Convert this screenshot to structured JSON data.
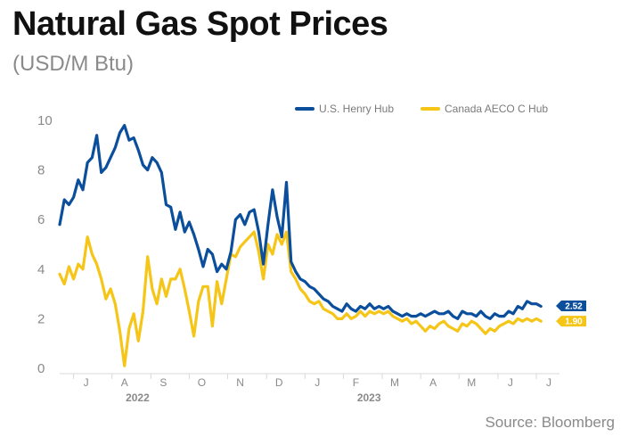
{
  "header": {
    "title": "Natural Gas Spot Prices",
    "subtitle": "(USD/M Btu)"
  },
  "footer": {
    "source": "Source: Bloomberg"
  },
  "chart_data": {
    "type": "line",
    "title": "Natural Gas Spot Prices",
    "subtitle": "(USD/M Btu)",
    "ylim": [
      0,
      10
    ],
    "yticks": [
      0,
      2,
      4,
      6,
      8,
      10
    ],
    "x_range": [
      2022.47,
      2023.55
    ],
    "x_month_ticks": [
      {
        "label": "J",
        "x": 2022.5
      },
      {
        "label": "A",
        "x": 2022.583
      },
      {
        "label": "S",
        "x": 2022.667
      },
      {
        "label": "O",
        "x": 2022.75
      },
      {
        "label": "N",
        "x": 2022.833
      },
      {
        "label": "D",
        "x": 2022.917
      },
      {
        "label": "J",
        "x": 2023.0
      },
      {
        "label": "F",
        "x": 2023.083
      },
      {
        "label": "M",
        "x": 2023.167
      },
      {
        "label": "A",
        "x": 2023.25
      },
      {
        "label": "M",
        "x": 2023.333
      },
      {
        "label": "J",
        "x": 2023.417
      },
      {
        "label": "J",
        "x": 2023.5
      }
    ],
    "year_labels": [
      {
        "label": "2022",
        "x": 2022.75
      },
      {
        "label": "2023",
        "x": 2023.25
      }
    ],
    "grid": false,
    "legend": "top-right",
    "series": [
      {
        "name": "U.S. Henry Hub",
        "color": "#0b4f9c",
        "end_label": "2.52",
        "points": [
          [
            2022.47,
            5.8
          ],
          [
            2022.48,
            6.8
          ],
          [
            2022.49,
            6.6
          ],
          [
            2022.5,
            6.9
          ],
          [
            2022.51,
            7.6
          ],
          [
            2022.52,
            7.2
          ],
          [
            2022.53,
            8.3
          ],
          [
            2022.54,
            8.5
          ],
          [
            2022.55,
            9.4
          ],
          [
            2022.56,
            7.9
          ],
          [
            2022.57,
            8.1
          ],
          [
            2022.58,
            8.5
          ],
          [
            2022.59,
            8.9
          ],
          [
            2022.6,
            9.5
          ],
          [
            2022.61,
            9.8
          ],
          [
            2022.62,
            9.2
          ],
          [
            2022.63,
            9.3
          ],
          [
            2022.64,
            8.8
          ],
          [
            2022.65,
            8.2
          ],
          [
            2022.66,
            8.0
          ],
          [
            2022.67,
            8.5
          ],
          [
            2022.68,
            8.3
          ],
          [
            2022.69,
            7.9
          ],
          [
            2022.7,
            6.6
          ],
          [
            2022.71,
            6.5
          ],
          [
            2022.72,
            5.6
          ],
          [
            2022.73,
            6.3
          ],
          [
            2022.74,
            5.5
          ],
          [
            2022.75,
            5.9
          ],
          [
            2022.76,
            5.4
          ],
          [
            2022.77,
            4.8
          ],
          [
            2022.78,
            4.1
          ],
          [
            2022.79,
            4.8
          ],
          [
            2022.8,
            4.6
          ],
          [
            2022.81,
            3.9
          ],
          [
            2022.82,
            4.2
          ],
          [
            2022.83,
            4.0
          ],
          [
            2022.84,
            4.7
          ],
          [
            2022.85,
            6.0
          ],
          [
            2022.86,
            6.2
          ],
          [
            2022.87,
            5.8
          ],
          [
            2022.88,
            6.3
          ],
          [
            2022.89,
            6.4
          ],
          [
            2022.9,
            5.5
          ],
          [
            2022.91,
            4.2
          ],
          [
            2022.92,
            5.8
          ],
          [
            2022.93,
            7.2
          ],
          [
            2022.94,
            6.1
          ],
          [
            2022.95,
            5.3
          ],
          [
            2022.96,
            7.5
          ],
          [
            2022.97,
            4.3
          ],
          [
            2022.98,
            3.9
          ],
          [
            2022.99,
            3.6
          ],
          [
            2023.0,
            3.5
          ],
          [
            2023.01,
            3.3
          ],
          [
            2023.02,
            3.2
          ],
          [
            2023.03,
            3.0
          ],
          [
            2023.04,
            2.8
          ],
          [
            2023.05,
            2.7
          ],
          [
            2023.06,
            2.5
          ],
          [
            2023.07,
            2.4
          ],
          [
            2023.08,
            2.3
          ],
          [
            2023.09,
            2.6
          ],
          [
            2023.1,
            2.4
          ],
          [
            2023.11,
            2.3
          ],
          [
            2023.12,
            2.5
          ],
          [
            2023.13,
            2.4
          ],
          [
            2023.14,
            2.6
          ],
          [
            2023.15,
            2.4
          ],
          [
            2023.16,
            2.5
          ],
          [
            2023.17,
            2.4
          ],
          [
            2023.18,
            2.5
          ],
          [
            2023.19,
            2.3
          ],
          [
            2023.2,
            2.2
          ],
          [
            2023.21,
            2.1
          ],
          [
            2023.22,
            2.2
          ],
          [
            2023.23,
            2.1
          ],
          [
            2023.24,
            2.1
          ],
          [
            2023.25,
            2.2
          ],
          [
            2023.26,
            2.1
          ],
          [
            2023.27,
            2.2
          ],
          [
            2023.28,
            2.3
          ],
          [
            2023.29,
            2.2
          ],
          [
            2023.3,
            2.2
          ],
          [
            2023.31,
            2.3
          ],
          [
            2023.32,
            2.1
          ],
          [
            2023.33,
            2.0
          ],
          [
            2023.34,
            2.3
          ],
          [
            2023.35,
            2.2
          ],
          [
            2023.36,
            2.2
          ],
          [
            2023.37,
            2.1
          ],
          [
            2023.38,
            2.3
          ],
          [
            2023.39,
            2.1
          ],
          [
            2023.4,
            2.0
          ],
          [
            2023.41,
            2.2
          ],
          [
            2023.42,
            2.1
          ],
          [
            2023.43,
            2.1
          ],
          [
            2023.44,
            2.3
          ],
          [
            2023.45,
            2.2
          ],
          [
            2023.46,
            2.5
          ],
          [
            2023.47,
            2.4
          ],
          [
            2023.48,
            2.7
          ],
          [
            2023.49,
            2.6
          ],
          [
            2023.5,
            2.6
          ],
          [
            2023.51,
            2.5
          ]
        ]
      },
      {
        "name": "Canada AECO C Hub",
        "color": "#f5c518",
        "end_label": "1.90",
        "points": [
          [
            2022.47,
            3.8
          ],
          [
            2022.48,
            3.4
          ],
          [
            2022.49,
            4.1
          ],
          [
            2022.5,
            3.6
          ],
          [
            2022.51,
            4.2
          ],
          [
            2022.52,
            4.0
          ],
          [
            2022.53,
            5.3
          ],
          [
            2022.54,
            4.6
          ],
          [
            2022.55,
            4.2
          ],
          [
            2022.56,
            3.6
          ],
          [
            2022.57,
            2.8
          ],
          [
            2022.58,
            3.2
          ],
          [
            2022.59,
            2.6
          ],
          [
            2022.6,
            1.5
          ],
          [
            2022.61,
            0.1
          ],
          [
            2022.62,
            1.6
          ],
          [
            2022.63,
            2.2
          ],
          [
            2022.64,
            1.1
          ],
          [
            2022.65,
            2.3
          ],
          [
            2022.66,
            4.5
          ],
          [
            2022.67,
            3.2
          ],
          [
            2022.68,
            2.6
          ],
          [
            2022.69,
            3.6
          ],
          [
            2022.7,
            2.9
          ],
          [
            2022.71,
            3.6
          ],
          [
            2022.72,
            3.6
          ],
          [
            2022.73,
            4.0
          ],
          [
            2022.74,
            3.2
          ],
          [
            2022.75,
            2.3
          ],
          [
            2022.76,
            1.3
          ],
          [
            2022.77,
            2.7
          ],
          [
            2022.78,
            3.3
          ],
          [
            2022.79,
            3.3
          ],
          [
            2022.8,
            1.7
          ],
          [
            2022.81,
            3.5
          ],
          [
            2022.82,
            2.6
          ],
          [
            2022.83,
            3.6
          ],
          [
            2022.84,
            4.6
          ],
          [
            2022.85,
            4.5
          ],
          [
            2022.86,
            4.9
          ],
          [
            2022.87,
            5.1
          ],
          [
            2022.88,
            5.3
          ],
          [
            2022.89,
            5.5
          ],
          [
            2022.9,
            4.7
          ],
          [
            2022.91,
            3.6
          ],
          [
            2022.92,
            5.0
          ],
          [
            2022.93,
            4.6
          ],
          [
            2022.94,
            5.4
          ],
          [
            2022.95,
            5.0
          ],
          [
            2022.96,
            5.5
          ],
          [
            2022.97,
            3.9
          ],
          [
            2022.98,
            3.6
          ],
          [
            2022.99,
            3.2
          ],
          [
            2023.0,
            3.0
          ],
          [
            2023.01,
            2.7
          ],
          [
            2023.02,
            2.6
          ],
          [
            2023.03,
            2.7
          ],
          [
            2023.04,
            2.4
          ],
          [
            2023.05,
            2.3
          ],
          [
            2023.06,
            2.2
          ],
          [
            2023.07,
            2.0
          ],
          [
            2023.08,
            2.0
          ],
          [
            2023.09,
            2.2
          ],
          [
            2023.1,
            2.0
          ],
          [
            2023.11,
            2.1
          ],
          [
            2023.12,
            2.3
          ],
          [
            2023.13,
            2.1
          ],
          [
            2023.14,
            2.3
          ],
          [
            2023.15,
            2.2
          ],
          [
            2023.16,
            2.3
          ],
          [
            2023.17,
            2.2
          ],
          [
            2023.18,
            2.3
          ],
          [
            2023.19,
            2.1
          ],
          [
            2023.2,
            2.0
          ],
          [
            2023.21,
            1.9
          ],
          [
            2023.22,
            2.0
          ],
          [
            2023.23,
            1.8
          ],
          [
            2023.24,
            1.9
          ],
          [
            2023.25,
            1.7
          ],
          [
            2023.26,
            1.5
          ],
          [
            2023.27,
            1.7
          ],
          [
            2023.28,
            1.6
          ],
          [
            2023.29,
            1.8
          ],
          [
            2023.3,
            1.9
          ],
          [
            2023.31,
            1.7
          ],
          [
            2023.32,
            1.6
          ],
          [
            2023.33,
            1.5
          ],
          [
            2023.34,
            1.8
          ],
          [
            2023.35,
            1.7
          ],
          [
            2023.36,
            1.9
          ],
          [
            2023.37,
            1.8
          ],
          [
            2023.38,
            1.6
          ],
          [
            2023.39,
            1.4
          ],
          [
            2023.4,
            1.6
          ],
          [
            2023.41,
            1.5
          ],
          [
            2023.42,
            1.7
          ],
          [
            2023.43,
            1.8
          ],
          [
            2023.44,
            1.9
          ],
          [
            2023.45,
            1.8
          ],
          [
            2023.46,
            2.0
          ],
          [
            2023.47,
            1.9
          ],
          [
            2023.48,
            2.0
          ],
          [
            2023.49,
            1.9
          ],
          [
            2023.5,
            2.0
          ],
          [
            2023.51,
            1.9
          ]
        ]
      }
    ]
  }
}
